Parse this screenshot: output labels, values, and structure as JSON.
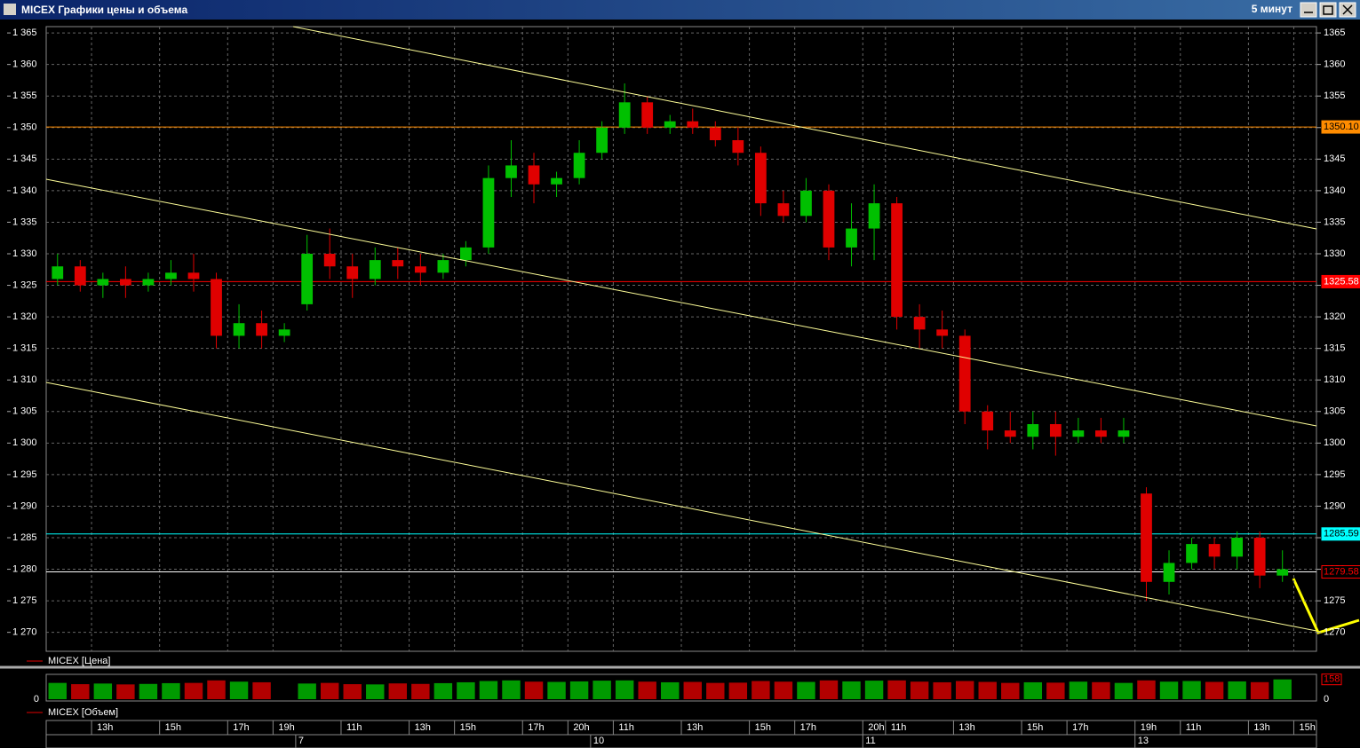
{
  "window": {
    "title": "MICEX Графики цены и объема",
    "interval": "5 минут"
  },
  "chart_data": {
    "type": "candlestick",
    "price_legend": "MICEX [Цена]",
    "volume_legend": "MICEX [Объем]",
    "categories": [
      null,
      null,
      "13h",
      null,
      null,
      "15h",
      null,
      null,
      "17h",
      null,
      "19h",
      null,
      null,
      "11h",
      null,
      null,
      "13h",
      null,
      "15h",
      null,
      null,
      "17h",
      null,
      "20h",
      null,
      "11h",
      null,
      null,
      "13h",
      null,
      null,
      "15h",
      null,
      "17h",
      null,
      null,
      "20h",
      "11h",
      null,
      null,
      "13h",
      null,
      null,
      "15h",
      null,
      "17h",
      null,
      null,
      "19h",
      null,
      "11h",
      null,
      null,
      "13h",
      null,
      "15h"
    ],
    "days": [
      null,
      null,
      null,
      null,
      null,
      null,
      null,
      null,
      null,
      null,
      null,
      "7",
      null,
      null,
      null,
      null,
      null,
      null,
      null,
      null,
      null,
      null,
      null,
      null,
      "10",
      null,
      null,
      null,
      null,
      null,
      null,
      null,
      null,
      null,
      null,
      null,
      "11",
      null,
      null,
      null,
      null,
      null,
      null,
      null,
      null,
      null,
      null,
      null,
      "13",
      null,
      null,
      null,
      null,
      null,
      null,
      null
    ],
    "open": [
      1326,
      1328,
      1325,
      1326,
      1325,
      1326,
      1327,
      1326,
      1317,
      1319,
      1317,
      1322,
      1330,
      1328,
      1326,
      1329,
      1328,
      1327,
      1329,
      1331,
      1342,
      1344,
      1341,
      1342,
      1346,
      1350,
      1354,
      1350,
      1351,
      1350,
      1348,
      1346,
      1338,
      1336,
      1340,
      1331,
      1334,
      1338,
      1320,
      1318,
      1317,
      1305,
      1302,
      1301,
      1303,
      1301,
      1302,
      1301,
      1292,
      1278,
      1281,
      1284,
      1282,
      1285,
      1279,
      null
    ],
    "high": [
      1330,
      1329,
      1327,
      1328,
      1327,
      1329,
      1330,
      1327,
      1322,
      1321,
      1319,
      1333,
      1334,
      1330,
      1331,
      1331,
      1330,
      1330,
      1332,
      1344,
      1348,
      1346,
      1343,
      1348,
      1351,
      1357,
      1355,
      1352,
      1353,
      1351,
      1350,
      1347,
      1340,
      1342,
      1341,
      1338,
      1341,
      1339,
      1322,
      1321,
      1318,
      1306,
      1305,
      1305,
      1305,
      1304,
      1304,
      1304,
      1293,
      1283,
      1285,
      1285,
      1286,
      1286,
      1283,
      null
    ],
    "low": [
      1325,
      1324,
      1323,
      1323,
      1324,
      1325,
      1324,
      1315,
      1315,
      1315,
      1316,
      1321,
      1326,
      1323,
      1325,
      1326,
      1325,
      1326,
      1328,
      1330,
      1339,
      1338,
      1339,
      1341,
      1345,
      1349,
      1349,
      1349,
      1349,
      1347,
      1344,
      1336,
      1335,
      1335,
      1329,
      1328,
      1329,
      1318,
      1315,
      1315,
      1303,
      1299,
      1300,
      1299,
      1298,
      1300,
      1300,
      1300,
      1275,
      1276,
      1280,
      1280,
      1280,
      1277,
      1278,
      null
    ],
    "close": [
      1328,
      1325,
      1326,
      1325,
      1326,
      1327,
      1326,
      1317,
      1319,
      1317,
      1318,
      1330,
      1328,
      1326,
      1329,
      1328,
      1327,
      1329,
      1331,
      1342,
      1344,
      1341,
      1342,
      1346,
      1350,
      1354,
      1350,
      1351,
      1350,
      1348,
      1346,
      1338,
      1336,
      1340,
      1331,
      1334,
      1338,
      1320,
      1318,
      1317,
      1305,
      1302,
      1301,
      1303,
      1301,
      1302,
      1301,
      1302,
      1278,
      1281,
      1284,
      1282,
      1285,
      1279,
      1280,
      null
    ],
    "up_color": "#00c000",
    "down_color": "#e00000",
    "ylim": [
      1267,
      1366
    ],
    "yticks": [
      {
        "value": 1270,
        "label": "1 270"
      },
      {
        "value": 1275,
        "label": "1 275"
      },
      {
        "value": 1280,
        "label": "1 280"
      },
      {
        "value": 1285,
        "label": "1 285"
      },
      {
        "value": 1290,
        "label": "1 290"
      },
      {
        "value": 1295,
        "label": "1 295"
      },
      {
        "value": 1300,
        "label": "1 300"
      },
      {
        "value": 1305,
        "label": "1 305"
      },
      {
        "value": 1310,
        "label": "1 310"
      },
      {
        "value": 1315,
        "label": "1 315"
      },
      {
        "value": 1320,
        "label": "1 320"
      },
      {
        "value": 1325,
        "label": "1 325"
      },
      {
        "value": 1330,
        "label": "1 330"
      },
      {
        "value": 1335,
        "label": "1 335"
      },
      {
        "value": 1340,
        "label": "1 340"
      },
      {
        "value": 1345,
        "label": "1 345"
      },
      {
        "value": 1350,
        "label": "1 350"
      },
      {
        "value": 1355,
        "label": "1 355"
      },
      {
        "value": 1360,
        "label": "1 360"
      },
      {
        "value": 1365,
        "label": "1 365"
      }
    ],
    "y2lim": [
      1267,
      1366
    ],
    "y2ticks": [
      1270,
      1275,
      1280,
      1285,
      1290,
      1295,
      1300,
      1305,
      1310,
      1315,
      1320,
      1325,
      1330,
      1335,
      1340,
      1345,
      1350,
      1355,
      1360,
      1365
    ],
    "grid": true,
    "levels": [
      {
        "value": 1350.1,
        "label": "1350.10",
        "color": "#ff8c00",
        "text_color": "#000000"
      },
      {
        "value": 1325.58,
        "label": "1325.58",
        "color": "#ff0000",
        "text_color": "#ffffff"
      },
      {
        "value": 1285.59,
        "label": "1285.59",
        "color": "#00ffff",
        "text_color": "#000000"
      },
      {
        "value": 1279.58,
        "label": "1279.58",
        "color": "#ffffff",
        "text_color": "#ff0000"
      }
    ],
    "volume": {
      "values": [
        130,
        120,
        125,
        118,
        122,
        128,
        130,
        150,
        140,
        135,
        0,
        125,
        130,
        120,
        118,
        126,
        122,
        128,
        135,
        145,
        150,
        140,
        138,
        142,
        148,
        150,
        140,
        135,
        138,
        130,
        132,
        145,
        140,
        138,
        150,
        142,
        148,
        150,
        140,
        135,
        145,
        138,
        130,
        135,
        132,
        140,
        136,
        130,
        150,
        140,
        145,
        138,
        142,
        136,
        158,
        null
      ],
      "ylim": [
        0,
        170
      ],
      "yticks": [
        0
      ]
    }
  }
}
